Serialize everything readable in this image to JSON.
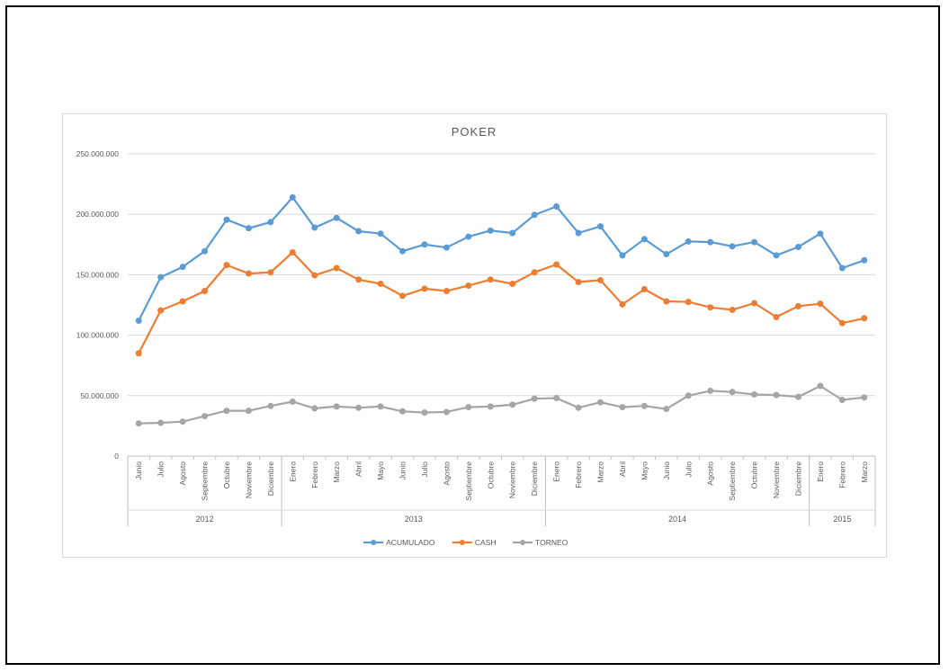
{
  "chart_data": {
    "type": "line",
    "title": "POKER",
    "xlabel": "",
    "ylabel": "",
    "ylim": [
      0,
      250000000
    ],
    "yticks": [
      0,
      50000000,
      100000000,
      150000000,
      200000000,
      250000000
    ],
    "ytick_labels": [
      "0",
      "50.000.000",
      "100.000.000",
      "150.000.000",
      "200.000.000",
      "250.000.000"
    ],
    "grid": true,
    "legend_position": "bottom",
    "categories": [
      "Junio",
      "Julio",
      "Agosto",
      "Septiembre",
      "Octubre",
      "Noviembre",
      "Diciembre",
      "Enero",
      "Febrero",
      "Marzo",
      "Abril",
      "Mayo",
      "Junio",
      "Julio",
      "Agosto",
      "Septiembre",
      "Octubre",
      "Noviembre",
      "Diciembre",
      "Enero",
      "Febrero",
      "Marzo",
      "Abril",
      "Mayo",
      "Junio",
      "Julio",
      "Agosto",
      "Septiembre",
      "Octubre",
      "Noviembre",
      "Diciembre",
      "Enero",
      "Febrero",
      "Marzo"
    ],
    "year_groups": [
      {
        "label": "2012",
        "start": 0,
        "end": 6
      },
      {
        "label": "2013",
        "start": 7,
        "end": 18
      },
      {
        "label": "2014",
        "start": 19,
        "end": 30
      },
      {
        "label": "2015",
        "start": 31,
        "end": 33
      }
    ],
    "series": [
      {
        "name": "ACUMULADO",
        "color": "#5b9bd5",
        "values": [
          112000000,
          148000000,
          156500000,
          169500000,
          195500000,
          188500000,
          193500000,
          214000000,
          189000000,
          197000000,
          186000000,
          184000000,
          169500000,
          175000000,
          172500000,
          181500000,
          186500000,
          184500000,
          199500000,
          206500000,
          184500000,
          190000000,
          166000000,
          179500000,
          167000000,
          177500000,
          177000000,
          173500000,
          177000000,
          166000000,
          173000000,
          184000000,
          155500000,
          162000000
        ]
      },
      {
        "name": "CASH",
        "color": "#ed7d31",
        "values": [
          85000000,
          120500000,
          128000000,
          136500000,
          158000000,
          151000000,
          152000000,
          168500000,
          149500000,
          155500000,
          146000000,
          142500000,
          132500000,
          138500000,
          136500000,
          141000000,
          146000000,
          142500000,
          152000000,
          158500000,
          144000000,
          145500000,
          125500000,
          138000000,
          128000000,
          127500000,
          123000000,
          121000000,
          126500000,
          115000000,
          124000000,
          126000000,
          110000000,
          114000000
        ]
      },
      {
        "name": "TORNEO",
        "color": "#a5a5a5",
        "values": [
          27000000,
          27500000,
          28500000,
          33000000,
          37500000,
          37500000,
          41500000,
          45000000,
          39500000,
          41000000,
          40000000,
          41000000,
          37000000,
          36000000,
          36500000,
          40500000,
          41000000,
          42500000,
          47500000,
          48000000,
          40000000,
          44500000,
          40500000,
          41500000,
          39000000,
          50000000,
          54000000,
          53000000,
          51000000,
          50500000,
          49000000,
          58000000,
          46500000,
          48500000
        ]
      }
    ]
  }
}
